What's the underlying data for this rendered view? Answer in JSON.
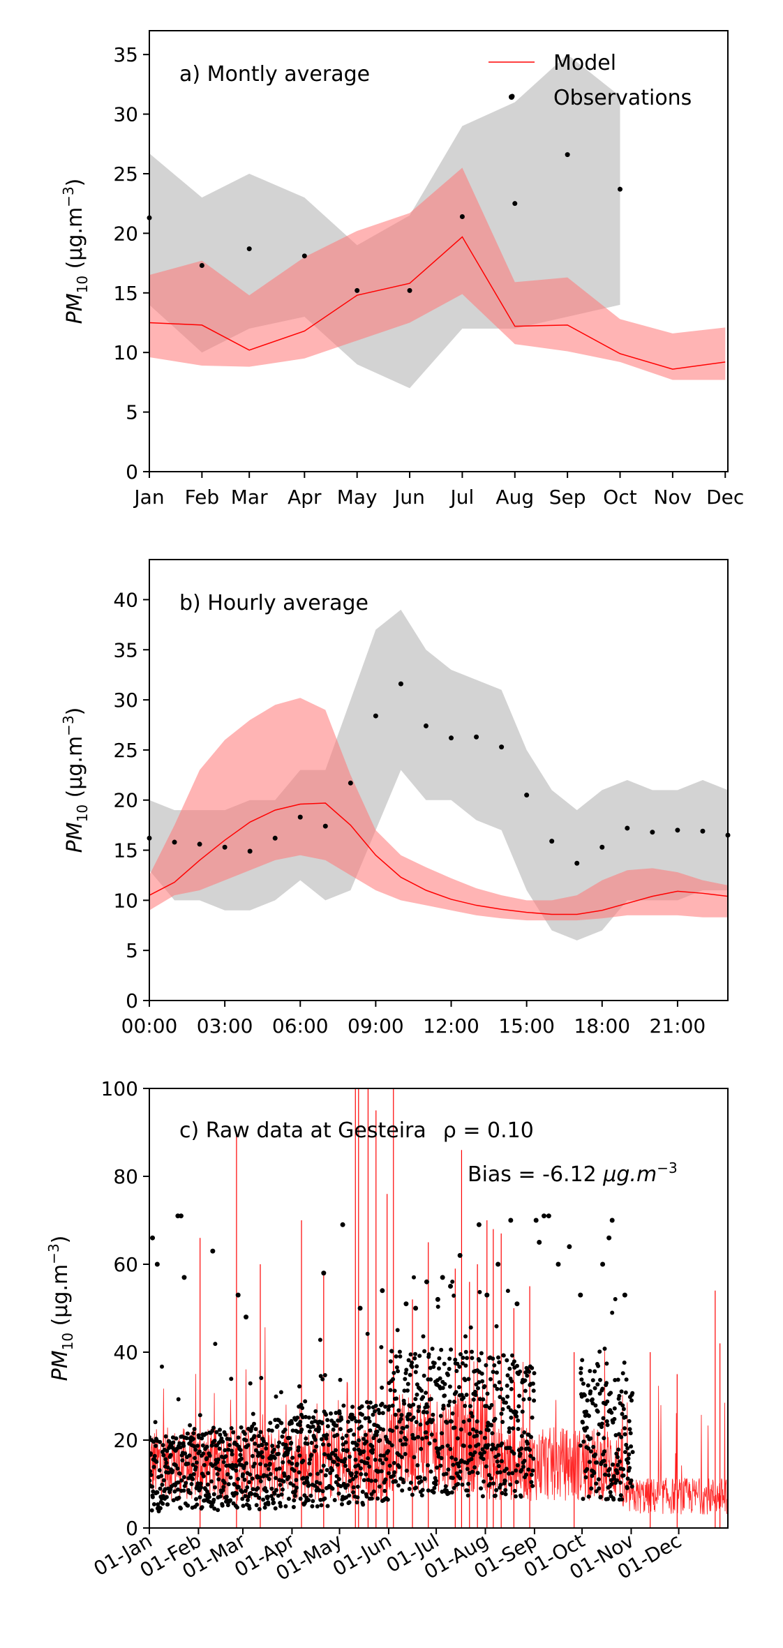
{
  "colors": {
    "model": "#ff0000",
    "model_band": "#ff9999",
    "obs": "#000000",
    "obs_band": "#c8c8c8"
  },
  "legend": {
    "model": "Model",
    "observations": "Observations",
    "placement": "top-right"
  },
  "chart_data": [
    {
      "type": "line",
      "id": "monthly",
      "title": "a) Montly average",
      "ylabel_parts": [
        "PM",
        "10",
        " (μg.m",
        "−3",
        ")"
      ],
      "ylim": [
        0,
        37
      ],
      "yticks": [
        0,
        5,
        10,
        15,
        20,
        25,
        30,
        35
      ],
      "xlim": [
        0,
        11
      ],
      "categories": [
        "Jan",
        "Feb",
        "Mar",
        "Apr",
        "May",
        "Jun",
        "Jul",
        "Aug",
        "Sep",
        "Oct",
        "Nov",
        "Dec"
      ],
      "xtick_pos": [
        0,
        1,
        1.9,
        2.95,
        3.95,
        4.95,
        5.95,
        6.95,
        7.95,
        8.95,
        9.95,
        10.95
      ],
      "grid": false,
      "obs_band": {
        "x": [
          0,
          1,
          1.9,
          2.95,
          3.95,
          4.95,
          5.95,
          6.95,
          7.95,
          8.95
        ],
        "upper": [
          26.7,
          23.0,
          25.0,
          23.0,
          19.0,
          21.5,
          29.0,
          31.0,
          35.0,
          31.5
        ],
        "lower": [
          14.0,
          10.0,
          12.0,
          13.0,
          9.0,
          7.0,
          12.0,
          12.0,
          13.0,
          14.0
        ]
      },
      "model_band": {
        "x": [
          0,
          1,
          1.9,
          2.95,
          3.95,
          4.95,
          5.95,
          6.95,
          7.95,
          8.95,
          9.95,
          10.95
        ],
        "upper": [
          16.5,
          17.7,
          14.8,
          18.0,
          20.2,
          21.7,
          25.5,
          15.9,
          16.3,
          12.8,
          11.6,
          12.1
        ],
        "lower": [
          9.6,
          8.9,
          8.8,
          9.5,
          11.0,
          12.5,
          14.9,
          10.7,
          10.1,
          9.2,
          7.7,
          7.7
        ]
      },
      "series": [
        {
          "name": "Model",
          "x": [
            0,
            1,
            1.9,
            2.95,
            3.95,
            4.95,
            5.95,
            6.95,
            7.95,
            8.95,
            9.95,
            10.95
          ],
          "values": [
            12.5,
            12.3,
            10.2,
            11.8,
            14.8,
            15.8,
            19.7,
            12.2,
            12.3,
            9.9,
            8.6,
            9.2
          ]
        },
        {
          "name": "Observations",
          "x": [
            0,
            1,
            1.9,
            2.95,
            3.95,
            4.95,
            5.95,
            6.95,
            7.95,
            8.95
          ],
          "values": [
            21.3,
            17.3,
            18.7,
            18.1,
            15.2,
            15.2,
            21.4,
            22.5,
            26.6,
            23.7
          ]
        }
      ],
      "extra_points": [
        {
          "x": 6.9,
          "y": 31.5
        }
      ]
    },
    {
      "type": "line",
      "id": "hourly",
      "title": "b) Hourly average",
      "ylabel_parts": [
        "PM",
        "10",
        " (μg.m",
        "−3",
        ")"
      ],
      "ylim": [
        0,
        44
      ],
      "yticks": [
        0,
        5,
        10,
        15,
        20,
        25,
        30,
        35,
        40
      ],
      "xlim": [
        0,
        23
      ],
      "xtick_pos": [
        0,
        3,
        6,
        9,
        12,
        15,
        18,
        21
      ],
      "xtick_labels": [
        "00:00",
        "03:00",
        "06:00",
        "09:00",
        "12:00",
        "15:00",
        "18:00",
        "21:00"
      ],
      "grid": false,
      "obs_band": {
        "x": [
          0,
          1,
          2,
          3,
          4,
          5,
          6,
          7,
          8,
          9,
          10,
          11,
          12,
          13,
          14,
          15,
          16,
          17,
          18,
          19,
          20,
          21,
          22,
          23
        ],
        "upper": [
          20,
          19,
          19,
          19,
          20,
          20,
          23,
          23,
          30,
          37,
          39,
          35,
          33,
          32,
          31,
          25,
          21,
          19,
          21,
          22,
          21,
          21,
          22,
          21
        ],
        "lower": [
          13,
          10,
          10,
          9,
          9,
          10,
          12,
          10,
          11,
          17,
          23,
          20,
          20,
          18,
          17,
          11,
          7,
          6,
          7,
          10,
          10,
          10,
          11,
          11
        ]
      },
      "model_band": {
        "x": [
          0,
          1,
          2,
          3,
          4,
          5,
          6,
          7,
          8,
          9,
          10,
          11,
          12,
          13,
          14,
          15,
          16,
          17,
          18,
          19,
          20,
          21,
          22,
          23
        ],
        "upper": [
          12.5,
          17.5,
          23.0,
          26.0,
          28.0,
          29.5,
          30.2,
          29.0,
          22.5,
          17.0,
          14.5,
          13.3,
          12.2,
          11.2,
          10.5,
          10.0,
          10.0,
          10.5,
          12.0,
          13.0,
          13.2,
          12.8,
          12.0,
          11.5
        ],
        "lower": [
          9.0,
          10.5,
          11.0,
          12.0,
          13.0,
          14.0,
          14.5,
          14.0,
          12.5,
          11.0,
          10.0,
          9.5,
          9.0,
          8.5,
          8.2,
          8.0,
          8.0,
          8.0,
          8.2,
          8.5,
          8.5,
          8.5,
          8.3,
          8.3
        ]
      },
      "series": [
        {
          "name": "Model",
          "x": [
            0,
            1,
            2,
            3,
            4,
            5,
            6,
            7,
            8,
            9,
            10,
            11,
            12,
            13,
            14,
            15,
            16,
            17,
            18,
            19,
            20,
            21,
            22,
            23
          ],
          "values": [
            10.5,
            11.8,
            14.0,
            16.0,
            17.8,
            19.0,
            19.6,
            19.7,
            17.5,
            14.5,
            12.3,
            11.0,
            10.1,
            9.5,
            9.1,
            8.8,
            8.6,
            8.6,
            9.0,
            9.7,
            10.4,
            10.9,
            10.7,
            10.4
          ]
        },
        {
          "name": "Observations",
          "x": [
            0,
            1,
            2,
            3,
            4,
            5,
            6,
            7,
            8,
            9,
            10,
            11,
            12,
            13,
            14,
            15,
            16,
            17,
            18,
            19,
            20,
            21,
            22,
            23
          ],
          "values": [
            16.2,
            15.8,
            15.6,
            15.3,
            14.9,
            16.2,
            18.3,
            17.4,
            21.7,
            28.4,
            31.6,
            27.4,
            26.2,
            26.3,
            25.3,
            20.5,
            15.9,
            13.7,
            15.3,
            17.2,
            16.8,
            17.0,
            16.9,
            16.5
          ]
        }
      ]
    },
    {
      "type": "scatter",
      "id": "raw",
      "title": "c) Raw data at Gesteira",
      "rho_text": "ρ = 0.10",
      "bias_prefix": "Bias = ",
      "bias_value": "-6.12",
      "bias_units_main": " μg.m",
      "bias_units_sup": "−3",
      "ylabel_parts": [
        "PM",
        "10",
        " (μg.m",
        "−3",
        ")"
      ],
      "ylim": [
        0,
        100
      ],
      "yticks": [
        0,
        20,
        40,
        60,
        80,
        100
      ],
      "xlim": [
        0,
        365
      ],
      "xtick_pos": [
        0,
        31,
        59,
        90,
        120,
        151,
        181,
        212,
        243,
        273,
        304,
        334
      ],
      "xtick_labels": [
        "01-Jan",
        "01-Feb",
        "01-Mar",
        "01-Apr",
        "01-May",
        "01-Jun",
        "01-Jul",
        "01-Aug",
        "01-Sep",
        "01-Oct",
        "01-Nov",
        "01-Dec"
      ],
      "grid": false,
      "observation_days": [
        0,
        243,
        272,
        305
      ],
      "observation_spikes": [
        [
          2,
          66
        ],
        [
          5,
          60
        ],
        [
          18,
          71
        ],
        [
          20,
          71
        ],
        [
          22,
          57
        ],
        [
          40,
          63
        ],
        [
          56,
          53
        ],
        [
          61,
          48
        ],
        [
          110,
          58
        ],
        [
          122,
          69
        ],
        [
          133,
          50
        ],
        [
          147,
          54
        ],
        [
          162,
          51
        ],
        [
          168,
          50
        ],
        [
          175,
          56
        ],
        [
          182,
          52
        ],
        [
          185,
          57
        ],
        [
          190,
          55
        ],
        [
          196,
          62
        ],
        [
          208,
          69
        ],
        [
          213,
          53
        ],
        [
          220,
          60
        ],
        [
          228,
          70
        ],
        [
          232,
          51
        ],
        [
          244,
          70
        ],
        [
          246,
          65
        ],
        [
          249,
          71
        ],
        [
          252,
          71
        ],
        [
          258,
          60
        ],
        [
          265,
          64
        ],
        [
          272,
          53
        ],
        [
          286,
          60
        ],
        [
          290,
          66
        ],
        [
          292,
          70
        ],
        [
          300,
          53
        ]
      ],
      "model_spikes": [
        [
          32,
          66
        ],
        [
          55,
          90
        ],
        [
          70,
          60
        ],
        [
          96,
          70
        ],
        [
          110,
          58
        ],
        [
          130,
          100
        ],
        [
          132,
          100
        ],
        [
          138,
          100
        ],
        [
          143,
          95
        ],
        [
          150,
          76
        ],
        [
          154,
          100
        ],
        [
          166,
          52
        ],
        [
          176,
          65
        ],
        [
          193,
          59
        ],
        [
          197,
          86
        ],
        [
          202,
          56
        ],
        [
          207,
          60
        ],
        [
          213,
          70
        ],
        [
          217,
          68
        ],
        [
          222,
          67
        ],
        [
          230,
          50
        ],
        [
          240,
          55
        ],
        [
          268,
          40
        ],
        [
          316,
          40
        ],
        [
          333,
          35
        ],
        [
          357,
          54
        ],
        [
          360,
          42
        ]
      ]
    }
  ]
}
